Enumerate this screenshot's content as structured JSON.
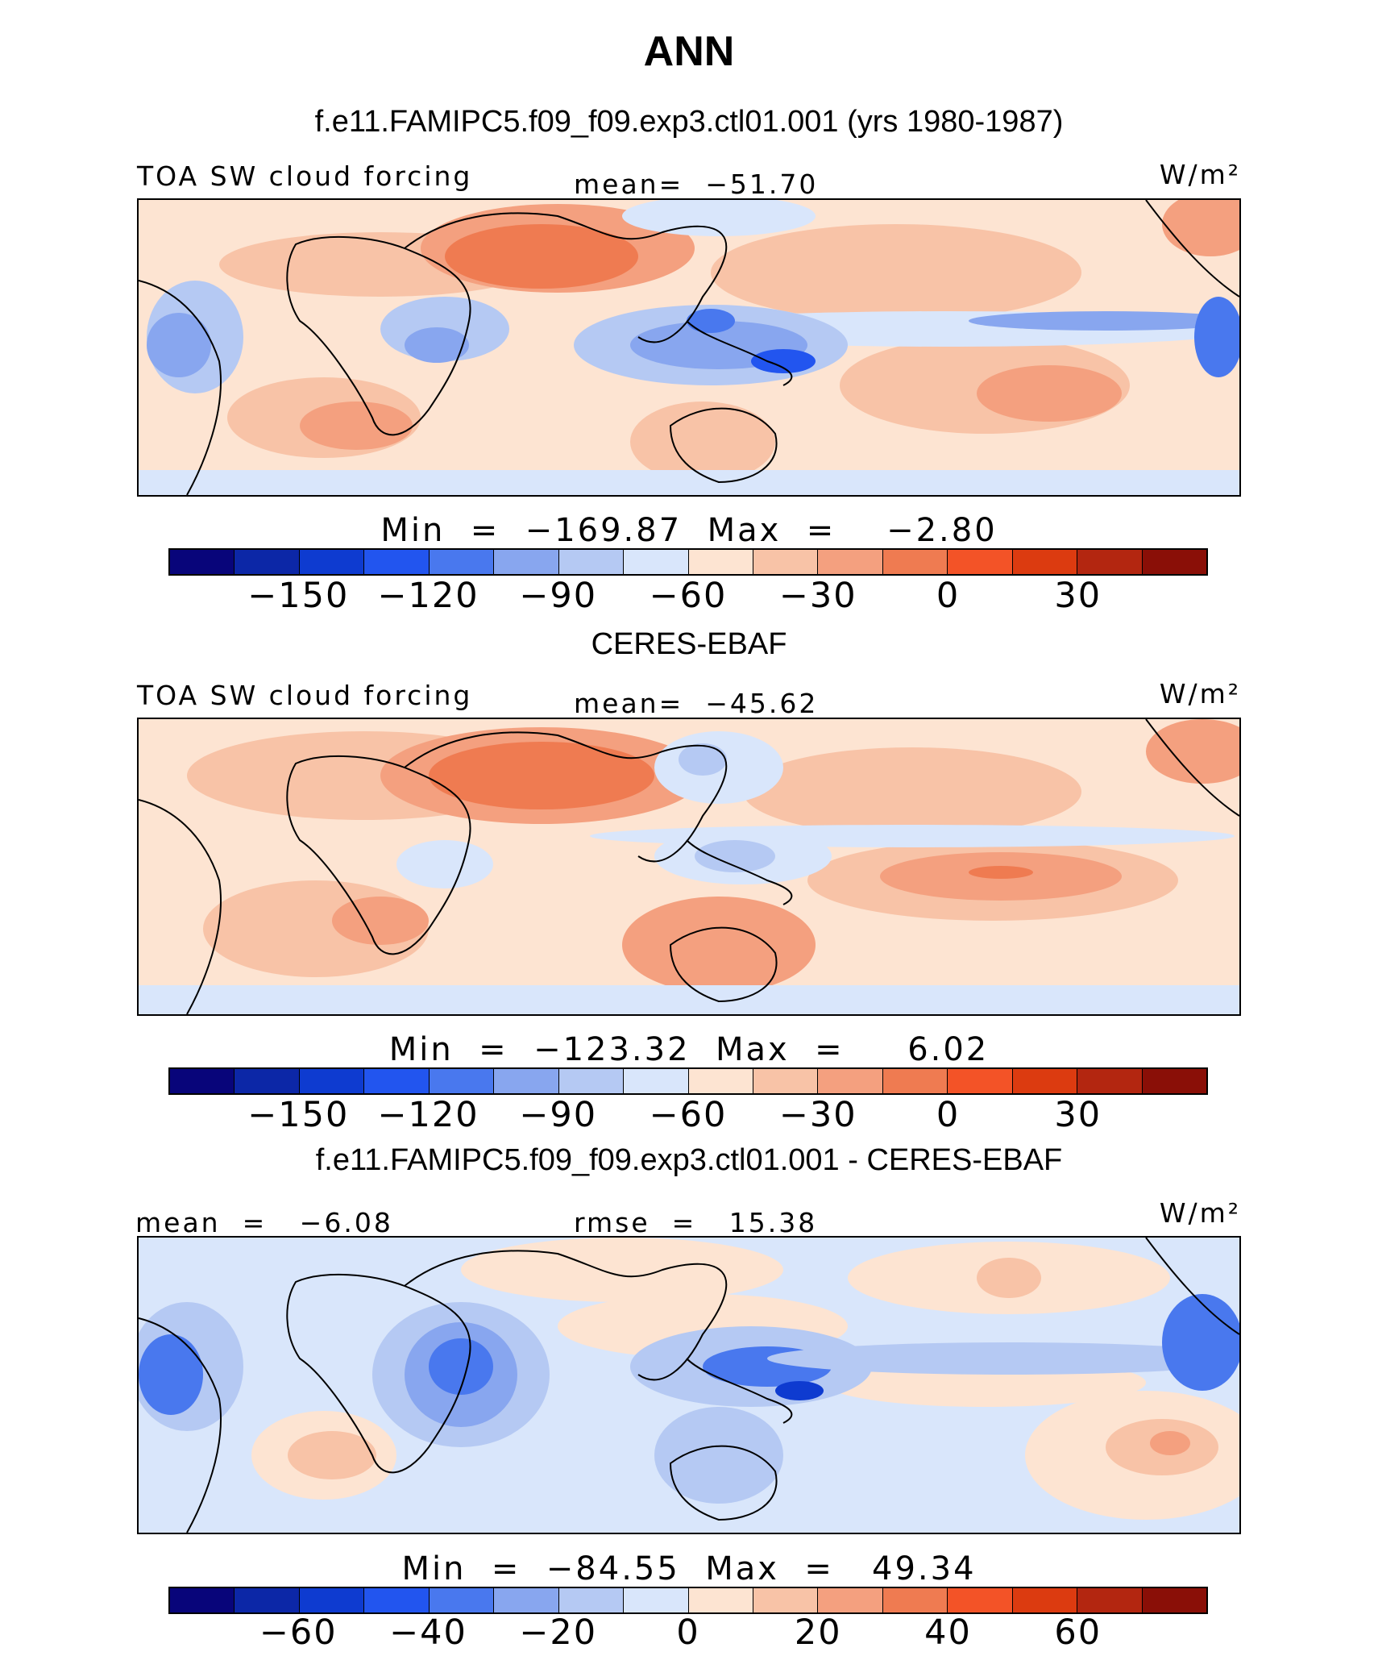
{
  "header": {
    "title": "ANN",
    "subtitle": "f.e11.FAMIPC5.f09_f09.exp3.ctl01.001 (yrs 1980-1987)"
  },
  "panels": [
    {
      "title": "",
      "left_label": "TOA SW cloud forcing",
      "center_label": "mean=  −51.70",
      "units": "W/m²",
      "minmax": "Min  =  −169.87  Max  =    −2.80",
      "colorbar": {
        "colors": [
          "#08057a",
          "#0c27a7",
          "#0e3bd0",
          "#2255ef",
          "#4978ee",
          "#88a6ef",
          "#b5c9f3",
          "#d9e6fb",
          "#fde4d2",
          "#f8c3a7",
          "#f4a07f",
          "#ef7b51",
          "#f35327",
          "#dc3b10",
          "#b32610",
          "#8a0f07"
        ],
        "tick_labels": [
          "−150",
          "−120",
          "−90",
          "−60",
          "−30",
          "0",
          "30"
        ],
        "tick_boundaries": [
          2,
          4,
          6,
          8,
          10,
          12,
          14
        ]
      },
      "field": "model"
    },
    {
      "title": "CERES-EBAF",
      "left_label": "TOA SW cloud forcing",
      "center_label": "mean=  −45.62",
      "units": "W/m²",
      "minmax": "Min  =  −123.32  Max  =     6.02",
      "colorbar": {
        "colors": [
          "#08057a",
          "#0c27a7",
          "#0e3bd0",
          "#2255ef",
          "#4978ee",
          "#88a6ef",
          "#b5c9f3",
          "#d9e6fb",
          "#fde4d2",
          "#f8c3a7",
          "#f4a07f",
          "#ef7b51",
          "#f35327",
          "#dc3b10",
          "#b32610",
          "#8a0f07"
        ],
        "tick_labels": [
          "−150",
          "−120",
          "−90",
          "−60",
          "−30",
          "0",
          "30"
        ],
        "tick_boundaries": [
          2,
          4,
          6,
          8,
          10,
          12,
          14
        ]
      },
      "field": "obs"
    },
    {
      "title": "f.e11.FAMIPC5.f09_f09.exp3.ctl01.001 - CERES-EBAF",
      "left_label": "mean  =   −6.08",
      "center_label": "rmse  =   15.38",
      "units": "W/m²",
      "minmax": "Min  =  −84.55  Max  =   49.34",
      "colorbar": {
        "colors": [
          "#08057a",
          "#0c27a7",
          "#0e3bd0",
          "#2255ef",
          "#4978ee",
          "#88a6ef",
          "#b5c9f3",
          "#d9e6fb",
          "#fde4d2",
          "#f8c3a7",
          "#f4a07f",
          "#ef7b51",
          "#f35327",
          "#dc3b10",
          "#b32610",
          "#8a0f07"
        ],
        "tick_labels": [
          "−60",
          "−40",
          "−20",
          "0",
          "20",
          "40",
          "60"
        ],
        "tick_boundaries": [
          2,
          4,
          6,
          8,
          10,
          12,
          14
        ]
      },
      "field": "diff"
    }
  ]
}
